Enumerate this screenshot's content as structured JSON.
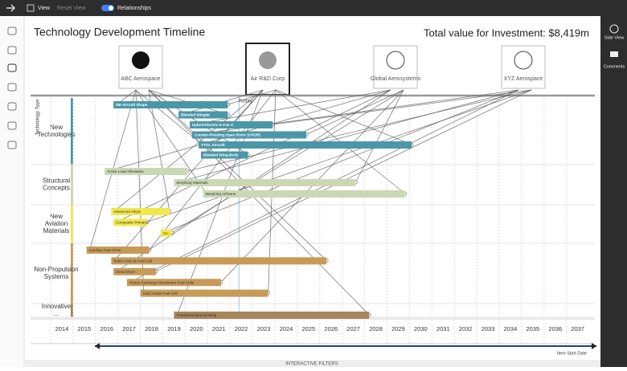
{
  "toolbar": {
    "view": "View",
    "reset": "Reset View",
    "relationships": "Relationships"
  },
  "title": "Technology Development Timeline",
  "total": "Total value for Investment: $8,419m",
  "companies": [
    {
      "name": "ABC Aerospace"
    },
    {
      "name": "Air R&D Corp"
    },
    {
      "name": "Global Aerosystems"
    },
    {
      "name": "XYZ Aerospace"
    }
  ],
  "today": "Today",
  "row_header": "Technology Type",
  "rows": [
    {
      "label": "New Technologies",
      "color": "#4a97a8",
      "items": [
        {
          "label": "DB Aircraft Shape",
          "start": 2016.8,
          "end": 2021.9
        },
        {
          "label": "Blended Winglet",
          "start": 2019.7,
          "end": 2021.9
        },
        {
          "label": "Hybrid-Electric E-Fan X",
          "start": 2020.2,
          "end": 2023.9
        },
        {
          "label": "Counter-Rotating Open Rotor (CROR)",
          "start": 2020.3,
          "end": 2025.4
        },
        {
          "label": "VTOL Aircraft",
          "start": 2020.6,
          "end": 2030.1
        },
        {
          "label": "Blended Wing-Body",
          "start": 2020.7,
          "end": 2022.8
        }
      ]
    },
    {
      "label": "Structural Concepts",
      "color": "#cbd8b4",
      "items": [
        {
          "label": "Active Load Alleviation",
          "start": 2016.4,
          "end": 2020.1
        },
        {
          "label": "Morphing Materials",
          "start": 2019.5,
          "end": 2027.6
        },
        {
          "label": "Morphing Airframe",
          "start": 2020.8,
          "end": 2029.8
        }
      ]
    },
    {
      "label": "New Aviation Materials",
      "color": "#f2e84a",
      "items": [
        {
          "label": "Advanced Alloys",
          "start": 2016.7,
          "end": 2019.3
        },
        {
          "label": "Composite Primary...",
          "start": 2016.8,
          "end": 2018.3
        },
        {
          "label": "Co...",
          "start": 2018.9,
          "end": 2019.4
        }
      ]
    },
    {
      "label": "Non-Propulsion Systems",
      "color": "#c79a58",
      "items": [
        {
          "label": "Landing Gear Drive",
          "start": 2015.6,
          "end": 2018.4
        },
        {
          "label": "Solid Acids as Fuel Cell",
          "start": 2016.7,
          "end": 2026.3
        },
        {
          "label": "Zonal Dryer",
          "start": 2016.8,
          "end": 2018.7
        },
        {
          "label": "Proton Exchange Membrane Fuel Cells",
          "start": 2017.4,
          "end": 2021.6
        },
        {
          "label": "Solid Oxide Fuel Cell",
          "start": 2018.0,
          "end": 2023.7
        }
      ]
    },
    {
      "label": "Innovative ...",
      "color": "#a8845a",
      "items": [
        {
          "label": "Truss/Strut Braced Wing",
          "start": 2019.5,
          "end": 2028.2
        }
      ]
    }
  ],
  "years": [
    2014,
    2015,
    2016,
    2017,
    2018,
    2019,
    2020,
    2021,
    2022,
    2023,
    2024,
    2025,
    2026,
    2027,
    2028,
    2029,
    2030,
    2031,
    2032,
    2033,
    2034,
    2035,
    2036,
    2037
  ],
  "today_year": 2022.4,
  "slider_label": "Item Start Date",
  "filters": "INTERACTIVE FILTERS",
  "sidebar": {
    "side_view": "Side View",
    "comments": "Comments"
  }
}
